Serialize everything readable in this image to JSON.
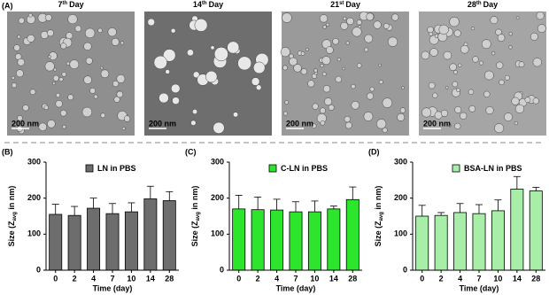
{
  "panel_a": {
    "label": "(A)",
    "images": [
      {
        "num": "7",
        "sup": "th",
        "word": "Day",
        "scale": "200 nm"
      },
      {
        "num": "14",
        "sup": "th",
        "word": "Day",
        "scale": "200 nm"
      },
      {
        "num": "21",
        "sup": "st",
        "word": "Day",
        "scale": "200 nm"
      },
      {
        "num": "28",
        "sup": "th",
        "word": "Day",
        "scale": "200 nm"
      }
    ]
  },
  "chart_data": [
    {
      "type": "bar",
      "label": "(B)",
      "ylabel": [
        "Size (Z",
        "avg",
        " in nm)"
      ],
      "xlabel": "Time (day)",
      "categories": [
        "0",
        "2",
        "4",
        "7",
        "10",
        "14",
        "28"
      ],
      "series": [
        {
          "name": "LN in PBS",
          "color": "#6d6d6d",
          "values": [
            155,
            152,
            172,
            157,
            162,
            198,
            193
          ],
          "errors": [
            28,
            25,
            28,
            28,
            25,
            35,
            25
          ]
        }
      ],
      "ylim": [
        0,
        300
      ],
      "yticks": [
        0,
        100,
        200,
        300
      ]
    },
    {
      "type": "bar",
      "label": "(C)",
      "ylabel": [
        "Size (Z",
        "avg",
        " in nm)"
      ],
      "xlabel": "Time (day)",
      "categories": [
        "0",
        "2",
        "4",
        "7",
        "10",
        "14",
        "28"
      ],
      "series": [
        {
          "name": "C-LN in PBS",
          "color": "#2ee52e",
          "values": [
            170,
            168,
            167,
            162,
            162,
            170,
            196
          ],
          "errors": [
            38,
            35,
            30,
            28,
            30,
            8,
            35
          ]
        }
      ],
      "ylim": [
        0,
        300
      ],
      "yticks": [
        0,
        100,
        200,
        300
      ]
    },
    {
      "type": "bar",
      "label": "(D)",
      "ylabel": [
        "Size (Z",
        "avg",
        " in nm)"
      ],
      "xlabel": "Time (day)",
      "categories": [
        "0",
        "2",
        "4",
        "7",
        "10",
        "14",
        "28"
      ],
      "series": [
        {
          "name": "BSA-LN in PBS",
          "color": "#a8eea8",
          "values": [
            150,
            152,
            160,
            157,
            165,
            225,
            220
          ],
          "errors": [
            30,
            8,
            25,
            25,
            30,
            35,
            10
          ]
        }
      ],
      "ylim": [
        0,
        300
      ],
      "yticks": [
        0,
        100,
        200,
        300
      ]
    }
  ]
}
